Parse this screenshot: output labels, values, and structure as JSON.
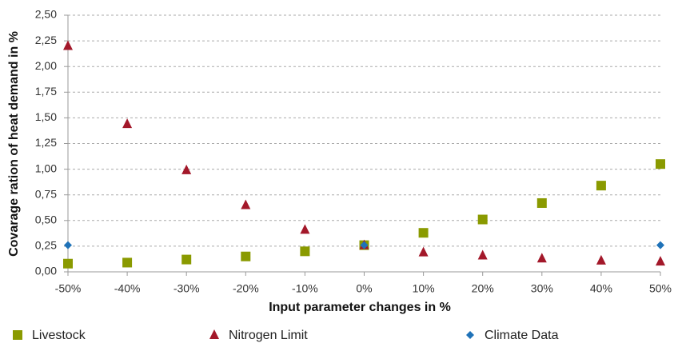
{
  "chart_data": {
    "type": "scatter",
    "xlabel": "Input parameter changes in %",
    "ylabel": "Covarage ration of heat demand in %",
    "xlim": [
      -50,
      50
    ],
    "xticks": [
      {
        "value": -50,
        "label": "-50%"
      },
      {
        "value": -40,
        "label": "-40%"
      },
      {
        "value": -30,
        "label": "-30%"
      },
      {
        "value": -20,
        "label": "-20%"
      },
      {
        "value": -10,
        "label": "-10%"
      },
      {
        "value": 0,
        "label": "0%"
      },
      {
        "value": 10,
        "label": "10%"
      },
      {
        "value": 20,
        "label": "20%"
      },
      {
        "value": 30,
        "label": "30%"
      },
      {
        "value": 40,
        "label": "40%"
      },
      {
        "value": 50,
        "label": "50%"
      }
    ],
    "ylim": [
      0,
      2.5
    ],
    "yticks": [
      {
        "value": 0,
        "label": "0,00"
      },
      {
        "value": 0.25,
        "label": "0,25"
      },
      {
        "value": 0.5,
        "label": "0,50"
      },
      {
        "value": 0.75,
        "label": "0,75"
      },
      {
        "value": 1,
        "label": "1,00"
      },
      {
        "value": 1.25,
        "label": "1,25"
      },
      {
        "value": 1.5,
        "label": "1,50"
      },
      {
        "value": 1.75,
        "label": "1,75"
      },
      {
        "value": 2,
        "label": "2,00"
      },
      {
        "value": 2.25,
        "label": "2,25"
      },
      {
        "value": 2.5,
        "label": "2,50"
      }
    ],
    "grid": true,
    "legend": "bottom",
    "series": [
      {
        "name": "Livestock",
        "color": "#8a9a00",
        "marker": "square",
        "x": [
          -50,
          -40,
          -30,
          -20,
          -10,
          0,
          10,
          20,
          30,
          40,
          50
        ],
        "values": [
          0.08,
          0.09,
          0.12,
          0.15,
          0.2,
          0.26,
          0.38,
          0.51,
          0.67,
          0.84,
          1.05
        ]
      },
      {
        "name": "Nitrogen Limit",
        "color": "#a3182a",
        "marker": "triangle",
        "x": [
          -50,
          -40,
          -30,
          -20,
          -10,
          0,
          10,
          20,
          30,
          40,
          50
        ],
        "values": [
          2.2,
          1.44,
          0.99,
          0.65,
          0.41,
          0.26,
          0.19,
          0.16,
          0.13,
          0.11,
          0.1
        ]
      },
      {
        "name": "Climate Data",
        "color": "#1f72b8",
        "marker": "diamond",
        "x": [
          -50,
          0,
          50
        ],
        "values": [
          0.26,
          0.26,
          0.26
        ]
      }
    ]
  }
}
